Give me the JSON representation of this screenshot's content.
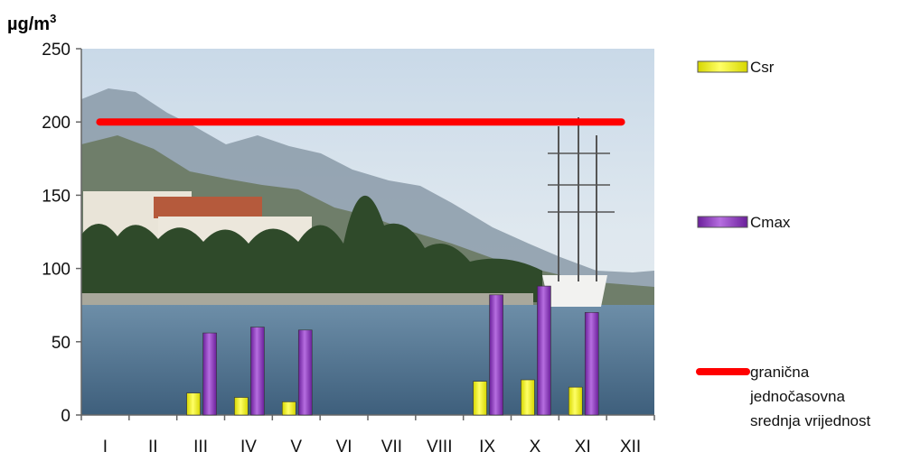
{
  "chart_data": {
    "type": "bar",
    "unit_label": "µg/m",
    "unit_superscript": "3",
    "categories": [
      "I",
      "II",
      "III",
      "IV",
      "V",
      "VI",
      "VII",
      "VIII",
      "IX",
      "X",
      "XI",
      "XII"
    ],
    "ylim": [
      0,
      250
    ],
    "yticks": [
      0,
      50,
      100,
      150,
      200,
      250
    ],
    "grid": false,
    "legend_position": "right",
    "background": "photo of coastal town with mountains and tall ship",
    "series": [
      {
        "name": "Csr",
        "color": "#ffff00",
        "values": [
          null,
          null,
          15,
          12,
          9,
          null,
          null,
          null,
          23,
          24,
          19,
          null
        ]
      },
      {
        "name": "Cmax",
        "color": "#9933cc",
        "values": [
          null,
          null,
          56,
          60,
          58,
          null,
          null,
          null,
          82,
          88,
          70,
          null
        ]
      }
    ],
    "reference_line": {
      "name": "granična jednočasovna srednja vrijednost",
      "value": 200,
      "color": "#ff0000",
      "from_category": "I",
      "to_category": "XII"
    },
    "legend": [
      {
        "label": "Csr"
      },
      {
        "label": "Cmax"
      },
      {
        "label_lines": [
          "granična",
          "jednočasovna",
          "srednja vrijednost"
        ]
      }
    ]
  }
}
